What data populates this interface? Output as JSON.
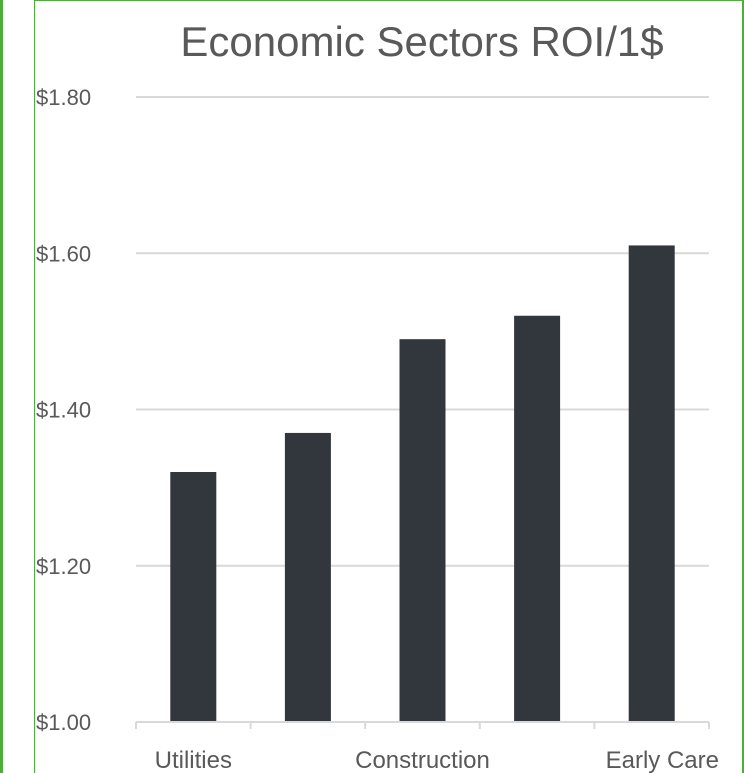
{
  "frame": {
    "border_color": "#4caf3a"
  },
  "chart_data": {
    "type": "bar",
    "title": "Economic Sectors ROI/1$",
    "xlabel": "",
    "ylabel": "",
    "categories": [
      "Utilities",
      "",
      "Construction",
      "",
      "Early Care"
    ],
    "values": [
      1.32,
      1.37,
      1.49,
      1.52,
      1.61
    ],
    "ylim": [
      1.0,
      1.8
    ],
    "yticks": [
      1.8,
      1.6,
      1.4,
      1.2,
      1.0
    ],
    "ytick_labels": [
      "$1.80",
      "$1.60",
      "$1.40",
      "$1.20",
      "$1.00"
    ],
    "grid": true,
    "legend": false,
    "bar_color": "#32363d",
    "grid_color": "#d9d9d9",
    "text_color": "#595959"
  }
}
